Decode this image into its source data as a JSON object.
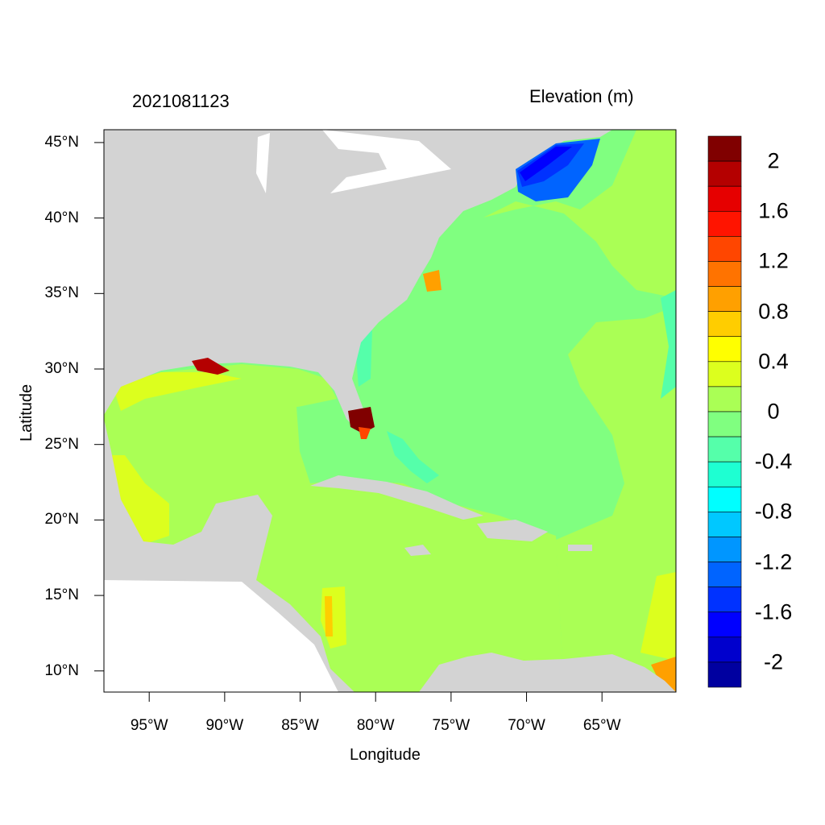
{
  "header": {
    "timestamp": "2021081123",
    "field_label": "Elevation (m)"
  },
  "axes": {
    "xlabel": "Longitude",
    "ylabel": "Latitude",
    "xticks": [
      {
        "lon": -95,
        "label": "95°W"
      },
      {
        "lon": -90,
        "label": "90°W"
      },
      {
        "lon": -85,
        "label": "85°W"
      },
      {
        "lon": -80,
        "label": "80°W"
      },
      {
        "lon": -75,
        "label": "75°W"
      },
      {
        "lon": -70,
        "label": "70°W"
      },
      {
        "lon": -65,
        "label": "65°W"
      }
    ],
    "yticks": [
      {
        "lat": 45,
        "label": "45°N"
      },
      {
        "lat": 40,
        "label": "40°N"
      },
      {
        "lat": 35,
        "label": "35°N"
      },
      {
        "lat": 30,
        "label": "30°N"
      },
      {
        "lat": 25,
        "label": "25°N"
      },
      {
        "lat": 20,
        "label": "20°N"
      },
      {
        "lat": 15,
        "label": "15°N"
      },
      {
        "lat": 10,
        "label": "10°N"
      }
    ],
    "lon_range": [
      -98,
      -60.1
    ],
    "lat_range": [
      8.6,
      45.85
    ]
  },
  "colorbar": {
    "levels_step": 0.2,
    "colors_top_to_bottom": [
      "#800000",
      "#B40000",
      "#E60000",
      "#FF1400",
      "#FF4600",
      "#FF7300",
      "#FFA000",
      "#FFCD00",
      "#FFFF00",
      "#DCFF1E",
      "#AAFF55",
      "#80FF80",
      "#55FFAA",
      "#1EFFD2",
      "#00FFFF",
      "#00C8FF",
      "#0096FF",
      "#0064FF",
      "#0032FF",
      "#0000FF",
      "#0000CD",
      "#0000A0"
    ],
    "labels": [
      "2",
      "1.6",
      "1.2",
      "0.8",
      "0.4",
      "0",
      "-0.4",
      "-0.8",
      "-1.2",
      "-1.6",
      "-2"
    ]
  },
  "colors": {
    "land": "#D3D3D3",
    "nodata": "#FFFFFF",
    "frame": "#000000"
  }
}
